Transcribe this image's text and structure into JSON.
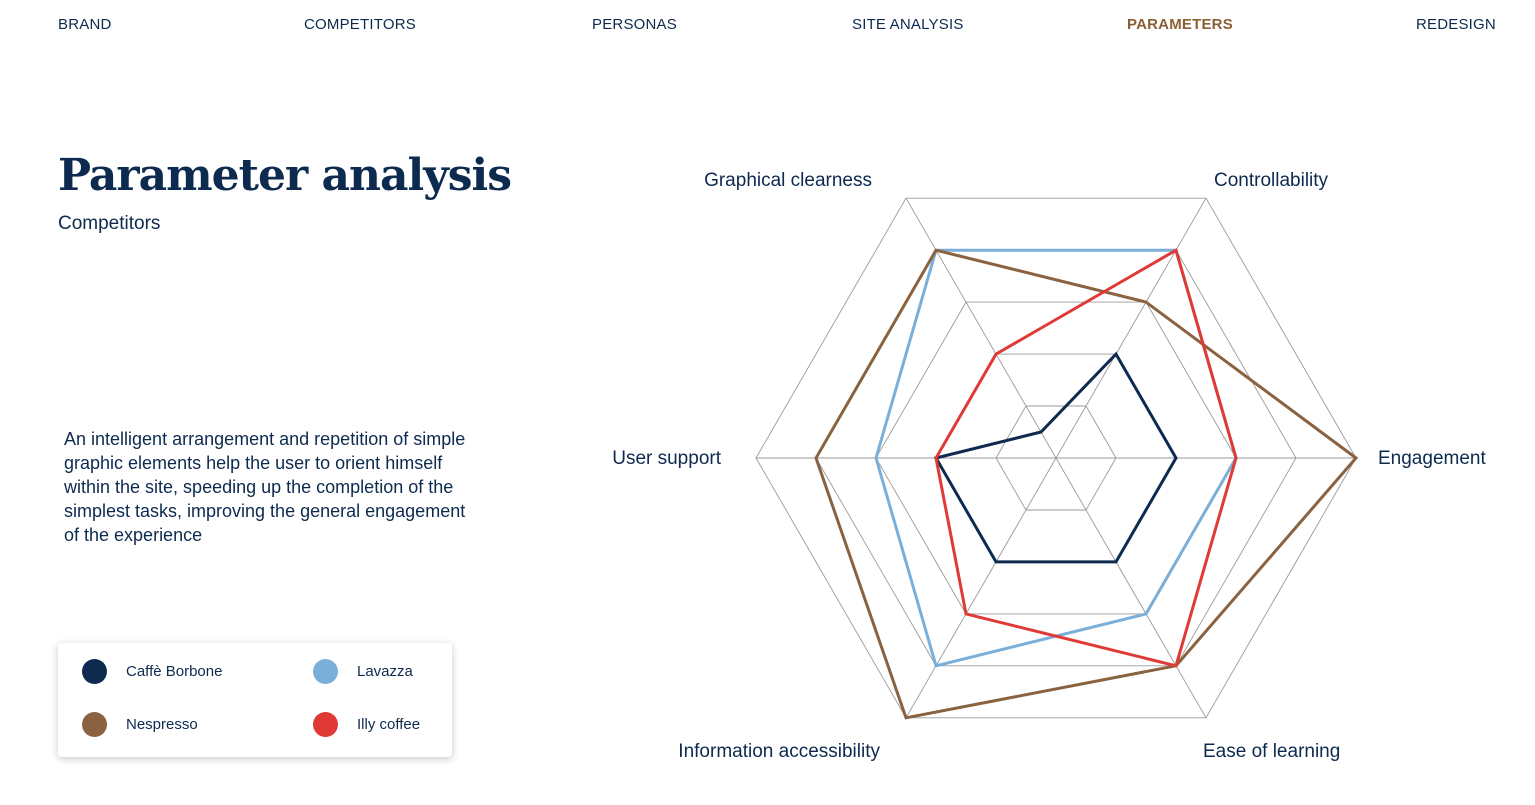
{
  "nav": {
    "items": [
      {
        "label": "BRAND",
        "active": false
      },
      {
        "label": "COMPETITORS",
        "active": false
      },
      {
        "label": "PERSONAS",
        "active": false
      },
      {
        "label": "SITE ANALYSIS",
        "active": false
      },
      {
        "label": "PARAMETERS",
        "active": true
      },
      {
        "label": "REDESIGN",
        "active": false
      }
    ],
    "active_color": "#8a5f33"
  },
  "page": {
    "title": "Parameter analysis",
    "subtitle": "Competitors",
    "description": "An intelligent arrangement and repetition of simple graphic elements help the user to orient himself within the site, speeding up the completion of the simplest tasks, improving the general engagement of the experience"
  },
  "legend": {
    "items": [
      {
        "label": "Caffè Borbone",
        "color": "#0d2a4f"
      },
      {
        "label": "Lavazza",
        "color": "#7aafda"
      },
      {
        "label": "Nespresso",
        "color": "#8a6240"
      },
      {
        "label": "Illy coffee",
        "color": "#e03a36"
      }
    ]
  },
  "chart_data": {
    "type": "radar",
    "axes": [
      "Engagement",
      "Controllability",
      "Graphical clearness",
      "User support",
      "Information accessibility",
      "Ease of learning"
    ],
    "rmax": 5,
    "grid_levels": 5,
    "series": [
      {
        "name": "Caffè Borbone",
        "color": "#0d2a4f",
        "values": [
          2,
          2,
          0.5,
          2,
          2,
          2
        ]
      },
      {
        "name": "Lavazza",
        "color": "#7aafda",
        "values": [
          3,
          4,
          4,
          3,
          4,
          3
        ]
      },
      {
        "name": "Nespresso",
        "color": "#8a6240",
        "values": [
          5,
          3,
          4,
          4,
          5,
          4
        ]
      },
      {
        "name": "Illy coffee",
        "color": "#e03a36",
        "values": [
          3,
          4,
          2,
          2,
          3,
          4
        ]
      }
    ]
  }
}
